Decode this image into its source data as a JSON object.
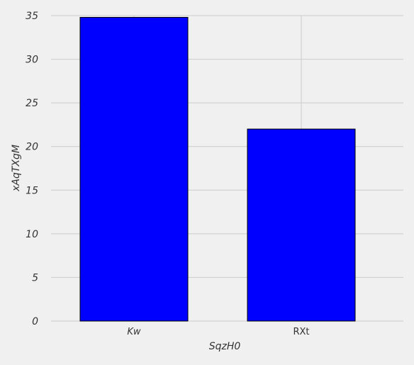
{
  "chart_data": {
    "type": "bar",
    "categories": [
      "Kw",
      "RXt"
    ],
    "values": [
      34.8,
      22.0
    ],
    "title": "",
    "xlabel": "SqzH0",
    "ylabel": "xAqTXgM",
    "ylim": [
      0,
      35
    ],
    "yticks": [
      0,
      5,
      10,
      15,
      20,
      25,
      30,
      35
    ],
    "grid": true,
    "legend": "none",
    "colors": {
      "bar_fill": "#0000ff",
      "bar_edge": "#000000",
      "grid": "#cbcbcb",
      "background": "#f0f0f0"
    }
  }
}
